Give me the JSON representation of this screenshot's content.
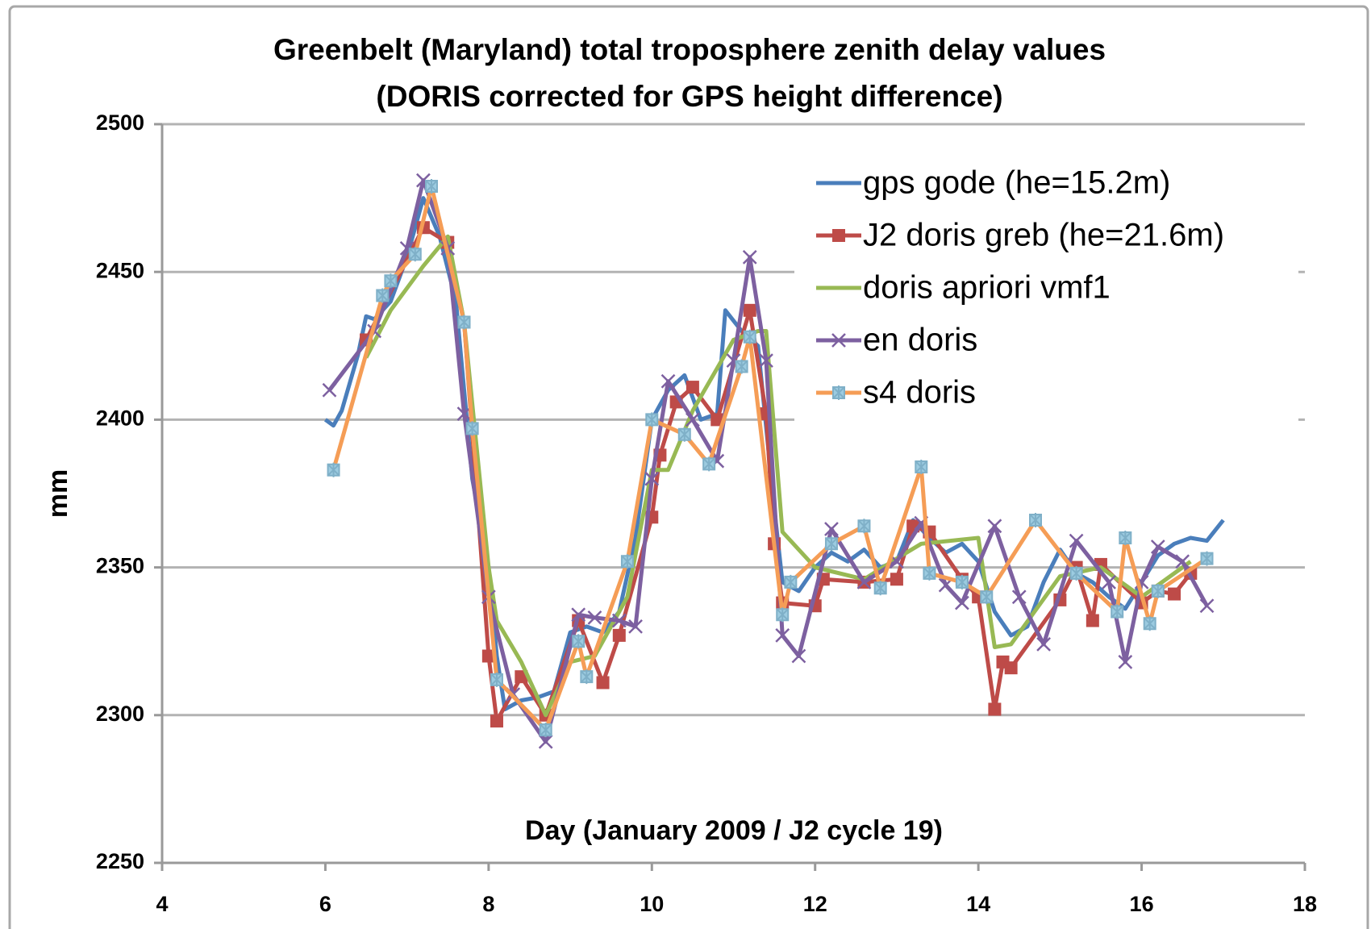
{
  "chart_data": {
    "type": "line",
    "title": "Greenbelt (Maryland) total troposphere zenith delay values",
    "subtitle": "(DORIS corrected for GPS height difference)",
    "x_label": "Day (January 2009 / J2 cycle 19)",
    "y_label": "mm",
    "xlim": [
      4,
      18
    ],
    "xticks": [
      4,
      6,
      8,
      10,
      12,
      14,
      16,
      18
    ],
    "ylim": [
      2250,
      2500
    ],
    "yticks": [
      2250,
      2300,
      2350,
      2400,
      2450,
      2500
    ],
    "grid": true,
    "legend": "upper right",
    "series": [
      {
        "name": "gps gode (he=15.2m)",
        "color": "#4a7ebb",
        "marker": "none",
        "x": [
          6.0,
          6.1,
          6.2,
          6.4,
          6.5,
          6.6,
          6.8,
          7.0,
          7.2,
          7.4,
          7.6,
          7.8,
          8.0,
          8.1,
          8.2,
          8.4,
          8.6,
          8.8,
          9.0,
          9.2,
          9.4,
          9.6,
          9.8,
          10.0,
          10.2,
          10.4,
          10.6,
          10.8,
          10.9,
          11.1,
          11.3,
          11.5,
          11.6,
          11.8,
          12.0,
          12.2,
          12.4,
          12.6,
          12.8,
          13.0,
          13.2,
          13.4,
          13.6,
          13.8,
          14.0,
          14.2,
          14.4,
          14.6,
          14.8,
          15.0,
          15.2,
          15.4,
          15.6,
          15.8,
          16.0,
          16.2,
          16.4,
          16.6,
          16.8,
          17.0
        ],
        "values": [
          2400,
          2398,
          2403,
          2422,
          2435,
          2434,
          2440,
          2455,
          2475,
          2462,
          2440,
          2380,
          2350,
          2320,
          2302,
          2305,
          2306,
          2308,
          2328,
          2330,
          2328,
          2335,
          2360,
          2400,
          2410,
          2415,
          2400,
          2402,
          2437,
          2430,
          2425,
          2370,
          2345,
          2342,
          2350,
          2355,
          2352,
          2356,
          2350,
          2352,
          2366,
          2360,
          2355,
          2358,
          2352,
          2335,
          2327,
          2330,
          2345,
          2356,
          2348,
          2345,
          2340,
          2336,
          2345,
          2354,
          2358,
          2360,
          2359,
          2366
        ]
      },
      {
        "name": "J2 doris greb (he=21.6m)",
        "color": "#be4b48",
        "marker": "square",
        "x": [
          6.5,
          7.2,
          7.5,
          7.7,
          8.0,
          8.1,
          8.4,
          8.7,
          9.1,
          9.4,
          9.6,
          10.0,
          10.1,
          10.3,
          10.5,
          10.8,
          11.2,
          11.4,
          11.5,
          11.6,
          12.0,
          12.1,
          12.6,
          13.0,
          13.2,
          13.4,
          13.8,
          14.0,
          14.2,
          14.3,
          14.4,
          15.0,
          15.2,
          15.4,
          15.5,
          16.0,
          16.2,
          16.4,
          16.6
        ],
        "values": [
          2427,
          2465,
          2460,
          2433,
          2320,
          2298,
          2313,
          2300,
          2332,
          2311,
          2327,
          2367,
          2388,
          2406,
          2411,
          2400,
          2437,
          2402,
          2358,
          2338,
          2337,
          2346,
          2345,
          2346,
          2364,
          2362,
          2346,
          2340,
          2302,
          2318,
          2316,
          2339,
          2350,
          2332,
          2351,
          2338,
          2342,
          2341,
          2348
        ]
      },
      {
        "name": "doris apriori vmf1",
        "color": "#98b954",
        "marker": "none",
        "x": [
          6.5,
          6.8,
          7.2,
          7.5,
          7.7,
          8.0,
          8.1,
          8.4,
          8.7,
          9.0,
          9.3,
          9.7,
          10.0,
          10.2,
          10.5,
          11.0,
          11.3,
          11.4,
          11.6,
          12.0,
          12.6,
          13.0,
          13.3,
          14.0,
          14.2,
          14.4,
          15.0,
          15.5,
          16.0,
          16.6
        ],
        "values": [
          2421,
          2437,
          2452,
          2462,
          2433,
          2350,
          2332,
          2318,
          2300,
          2318,
          2320,
          2340,
          2383,
          2383,
          2403,
          2427,
          2430,
          2430,
          2362,
          2350,
          2346,
          2353,
          2358,
          2360,
          2323,
          2324,
          2347,
          2350,
          2340,
          2352
        ]
      },
      {
        "name": "en doris",
        "color": "#7d60a0",
        "marker": "x",
        "x": [
          6.05,
          6.6,
          7.0,
          7.2,
          7.5,
          7.7,
          8.0,
          8.3,
          8.7,
          9.1,
          9.3,
          9.6,
          9.8,
          10.0,
          10.2,
          10.5,
          10.8,
          11.0,
          11.2,
          11.4,
          11.6,
          11.8,
          12.2,
          12.6,
          13.0,
          13.3,
          13.6,
          13.8,
          14.2,
          14.5,
          14.8,
          15.2,
          15.6,
          15.8,
          16.0,
          16.2,
          16.5,
          16.8
        ],
        "values": [
          2410,
          2430,
          2458,
          2481,
          2458,
          2402,
          2340,
          2307,
          2291,
          2334,
          2333,
          2332,
          2330,
          2380,
          2413,
          2400,
          2386,
          2420,
          2455,
          2420,
          2327,
          2320,
          2363,
          2345,
          2352,
          2365,
          2344,
          2338,
          2364,
          2340,
          2324,
          2359,
          2345,
          2318,
          2345,
          2357,
          2352,
          2337
        ]
      },
      {
        "name": "s4 doris",
        "color": "#f59d56",
        "marker": "star",
        "x": [
          6.1,
          6.7,
          6.8,
          7.1,
          7.3,
          7.7,
          7.8,
          8.1,
          8.7,
          9.1,
          9.2,
          9.7,
          10.0,
          10.4,
          10.7,
          11.1,
          11.2,
          11.6,
          11.7,
          12.2,
          12.6,
          12.8,
          13.3,
          13.4,
          13.8,
          14.1,
          14.7,
          15.2,
          15.7,
          15.8,
          16.1,
          16.2,
          16.8
        ],
        "values": [
          2383,
          2442,
          2447,
          2456,
          2479,
          2433,
          2397,
          2312,
          2295,
          2325,
          2313,
          2352,
          2400,
          2395,
          2385,
          2418,
          2428,
          2334,
          2345,
          2358,
          2364,
          2343,
          2384,
          2348,
          2345,
          2340,
          2366,
          2348,
          2335,
          2360,
          2331,
          2342,
          2353
        ]
      }
    ]
  }
}
